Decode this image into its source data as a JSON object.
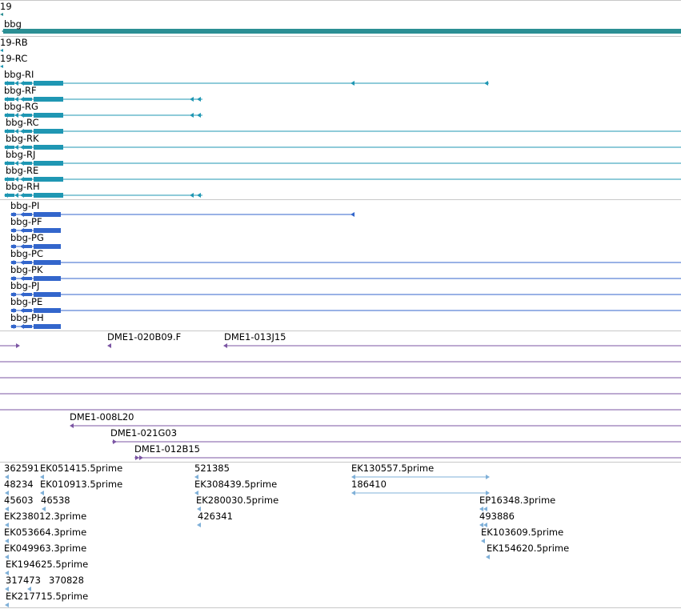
{
  "colors": {
    "gene": "#2b8f94",
    "transcript": "#1f97b3",
    "protein": "#3366cc",
    "clone": "#7b55a3",
    "est": "#7fb0d8",
    "separator": "#c8c8c8"
  },
  "top_labels": {
    "partial_gene": "19",
    "gene_name": "bbg",
    "partial_rb": "19-RB",
    "partial_rc": "19-RC"
  },
  "transcripts": [
    "bbg-RI",
    "bbg-RF",
    "bbg-RG",
    "bbg-RC",
    "bbg-RK",
    "bbg-RJ",
    "bbg-RE",
    "bbg-RH"
  ],
  "proteins": [
    "bbg-PI",
    "bbg-PF",
    "bbg-PG",
    "bbg-PC",
    "bbg-PK",
    "bbg-PJ",
    "bbg-PE",
    "bbg-PH"
  ],
  "clones": [
    "DME1-020B09.F",
    "DME1-013J15",
    "DME1-008L20",
    "DME1-021G03",
    "DME1-012B15"
  ],
  "ests": {
    "col1": [
      "362591",
      "48234",
      "45603",
      "EK238012.3prime",
      "EK053664.3prime",
      "EK049963.3prime",
      "EK194625.5prime",
      "317473",
      "EK217715.5prime"
    ],
    "col2": [
      "EK051415.5prime",
      "EK010913.5prime",
      "46538",
      "370828"
    ],
    "col3": [
      "521385",
      "EK308439.5prime",
      "EK280030.5prime",
      "426341"
    ],
    "col4": [
      "EK130557.5prime",
      "186410"
    ],
    "col5": [
      "EP16348.3prime",
      "493886",
      "EK103609.5prime",
      "EK154620.5prime"
    ]
  }
}
